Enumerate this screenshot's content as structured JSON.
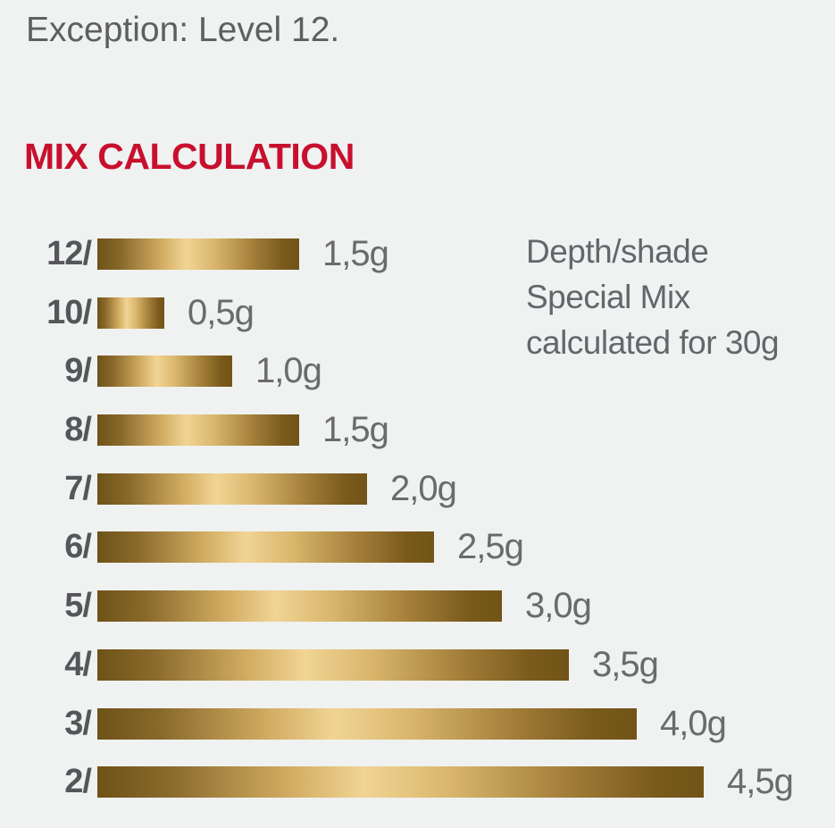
{
  "page": {
    "background_color": "#f0f1f1",
    "exception_note": "Exception: Level 12.",
    "section_title": "MIX CALCULATION",
    "title_color": "#c8102e",
    "text_color": "#5e5f61"
  },
  "chart_data": {
    "type": "bar",
    "orientation": "horizontal",
    "title": "MIX CALCULATION",
    "categories": [
      "12/",
      "10/",
      "9/",
      "8/",
      "7/",
      "6/",
      "5/",
      "4/",
      "3/",
      "2/"
    ],
    "values": [
      1.5,
      0.5,
      1.0,
      1.5,
      2.0,
      2.5,
      3.0,
      3.5,
      4.0,
      4.5
    ],
    "value_labels": [
      "1,5g",
      "0,5g",
      "1,0g",
      "1,5g",
      "2,0g",
      "2,5g",
      "3,0g",
      "3,5g",
      "4,0g",
      "4,5g"
    ],
    "unit": "g",
    "xlim": [
      0,
      4.5
    ],
    "grid": false,
    "legend": "none",
    "annotation": "Depth/shade Special Mix calculated for 30g",
    "annotation_lines": [
      "Depth/shade",
      "Special Mix",
      "calculated for 30g"
    ],
    "bar_gradient_stops": [
      "#6e5217 0%",
      "#8a6a2c 12%",
      "#d2ad62 32%",
      "#f1d494 44%",
      "#d9b66c 58%",
      "#a07c37 78%",
      "#7a5a1c 92%",
      "#715417 100%"
    ],
    "category_label_color": "#55565a",
    "value_label_color": "#6a6b6d",
    "annotation_color": "#63666a"
  }
}
